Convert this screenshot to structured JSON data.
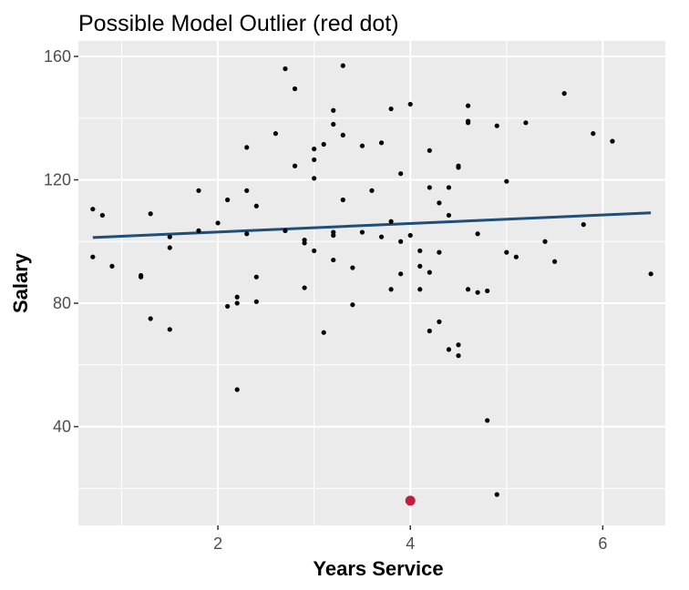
{
  "chart_data": {
    "type": "scatter",
    "title": "Possible Model Outlier (red dot)",
    "xlabel": "Years Service",
    "ylabel": "Salary",
    "xlim": [
      0.55,
      6.65
    ],
    "ylim": [
      8,
      165
    ],
    "xticks": [
      2,
      4,
      6
    ],
    "yticks": [
      40,
      80,
      120,
      160
    ],
    "x_tick_labels": [
      "2",
      "4",
      "6"
    ],
    "y_tick_labels": [
      "40",
      "80",
      "120",
      "160"
    ],
    "grid": true,
    "panel_color": "#ebebeb",
    "grid_color": "#ffffff",
    "point_color": "#000000",
    "outlier_color": "#c0203b",
    "line_color": "#1f4e79",
    "points": [
      [
        0.7,
        110.5
      ],
      [
        0.8,
        108.5
      ],
      [
        0.7,
        95
      ],
      [
        0.9,
        92
      ],
      [
        1.2,
        89
      ],
      [
        1.2,
        88.5
      ],
      [
        1.3,
        109
      ],
      [
        1.3,
        75
      ],
      [
        1.5,
        101.5
      ],
      [
        1.5,
        98
      ],
      [
        1.5,
        71.5
      ],
      [
        1.8,
        116.5
      ],
      [
        1.8,
        103.5
      ],
      [
        2.0,
        106
      ],
      [
        2.1,
        113.5
      ],
      [
        2.1,
        79
      ],
      [
        2.2,
        82
      ],
      [
        2.2,
        80
      ],
      [
        2.2,
        52
      ],
      [
        2.3,
        130.5
      ],
      [
        2.3,
        116.5
      ],
      [
        2.3,
        102.5
      ],
      [
        2.4,
        111.5
      ],
      [
        2.4,
        88.5
      ],
      [
        2.4,
        80.5
      ],
      [
        2.6,
        135
      ],
      [
        2.7,
        156
      ],
      [
        2.7,
        103.5
      ],
      [
        2.8,
        149.5
      ],
      [
        2.8,
        124.5
      ],
      [
        2.9,
        100.5
      ],
      [
        2.9,
        99.5
      ],
      [
        2.9,
        85
      ],
      [
        3.0,
        130
      ],
      [
        3.0,
        126.5
      ],
      [
        3.0,
        120.5
      ],
      [
        3.0,
        97
      ],
      [
        3.1,
        131.5
      ],
      [
        3.1,
        70.5
      ],
      [
        3.2,
        142.5
      ],
      [
        3.2,
        138
      ],
      [
        3.2,
        103
      ],
      [
        3.2,
        102
      ],
      [
        3.2,
        94
      ],
      [
        3.3,
        157
      ],
      [
        3.3,
        134.5
      ],
      [
        3.3,
        113.5
      ],
      [
        3.4,
        91.5
      ],
      [
        3.4,
        79.5
      ],
      [
        3.5,
        131
      ],
      [
        3.5,
        103
      ],
      [
        3.6,
        116.5
      ],
      [
        3.7,
        132
      ],
      [
        3.7,
        101.5
      ],
      [
        3.8,
        143
      ],
      [
        3.8,
        106.5
      ],
      [
        3.8,
        84.5
      ],
      [
        3.9,
        122
      ],
      [
        3.9,
        100
      ],
      [
        3.9,
        89.5
      ],
      [
        4.0,
        144.5
      ],
      [
        4.0,
        102
      ],
      [
        4.1,
        97
      ],
      [
        4.1,
        92
      ],
      [
        4.1,
        84.5
      ],
      [
        4.2,
        129.5
      ],
      [
        4.2,
        117.5
      ],
      [
        4.2,
        90
      ],
      [
        4.2,
        71
      ],
      [
        4.3,
        112.5
      ],
      [
        4.3,
        96.5
      ],
      [
        4.3,
        74
      ],
      [
        4.4,
        117.5
      ],
      [
        4.4,
        108.5
      ],
      [
        4.4,
        65
      ],
      [
        4.5,
        124.5
      ],
      [
        4.5,
        124
      ],
      [
        4.5,
        66.5
      ],
      [
        4.5,
        63
      ],
      [
        4.6,
        144
      ],
      [
        4.6,
        139
      ],
      [
        4.6,
        138.5
      ],
      [
        4.6,
        84.5
      ],
      [
        4.7,
        102.5
      ],
      [
        4.7,
        83.5
      ],
      [
        4.8,
        84
      ],
      [
        4.8,
        42
      ],
      [
        4.9,
        137.5
      ],
      [
        4.9,
        18
      ],
      [
        5.0,
        119.5
      ],
      [
        5.0,
        96.5
      ],
      [
        5.1,
        95
      ],
      [
        5.2,
        138.5
      ],
      [
        5.4,
        100
      ],
      [
        5.5,
        93.5
      ],
      [
        5.6,
        148
      ],
      [
        5.8,
        105.5
      ],
      [
        5.9,
        135
      ],
      [
        6.1,
        132.5
      ],
      [
        6.5,
        89.5
      ]
    ],
    "outlier": [
      4.0,
      16
    ],
    "regression_line": {
      "x": [
        0.7,
        6.5
      ],
      "y": [
        101.3,
        109.3
      ]
    }
  }
}
